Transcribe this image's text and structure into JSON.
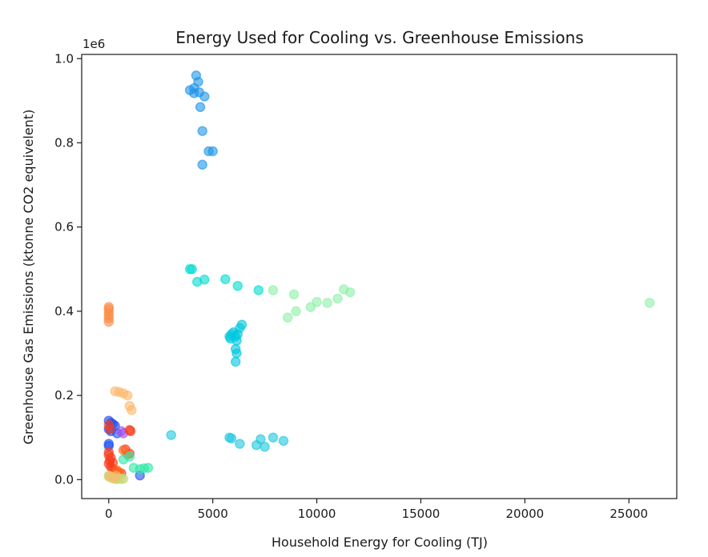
{
  "chart_data": {
    "type": "scatter",
    "title": "Energy Used for Cooling vs. Greenhouse Emissions",
    "xlabel": "Household Energy for Cooling (TJ)",
    "ylabel": "Greenhouse Gas Emissions (ktonne CO2 equivelent)",
    "y_offset_label": "1e6",
    "xlim": [
      -1300,
      27300
    ],
    "ylim": [
      -45000,
      1010000
    ],
    "xticks": [
      0,
      5000,
      10000,
      15000,
      20000,
      25000
    ],
    "xtick_labels": [
      "0",
      "5000",
      "10000",
      "15000",
      "20000",
      "25000"
    ],
    "yticks": [
      0,
      200000,
      400000,
      600000,
      800000,
      1000000
    ],
    "ytick_labels": [
      "0.0",
      "0.2",
      "0.4",
      "0.6",
      "0.8",
      "1.0"
    ],
    "grid": false,
    "legend": "none",
    "marker_alpha": 0.6,
    "groups": [
      {
        "color": "#1f96e8",
        "points": [
          [
            4200,
            960000
          ],
          [
            4300,
            945000
          ],
          [
            4100,
            930000
          ],
          [
            3900,
            925000
          ],
          [
            4100,
            918000
          ],
          [
            4350,
            920000
          ],
          [
            4600,
            910000
          ],
          [
            4400,
            885000
          ],
          [
            4500,
            828000
          ],
          [
            4800,
            780000
          ],
          [
            5000,
            780000
          ],
          [
            4500,
            748000
          ]
        ]
      },
      {
        "color": "#00dcd0",
        "points": [
          [
            3900,
            500000
          ],
          [
            4000,
            500000
          ],
          [
            4250,
            470000
          ],
          [
            4600,
            475000
          ],
          [
            5600,
            476000
          ],
          [
            6200,
            460000
          ],
          [
            7200,
            450000
          ]
        ]
      },
      {
        "color": "#8ef0a8",
        "points": [
          [
            7900,
            450000
          ],
          [
            8900,
            440000
          ],
          [
            8600,
            385000
          ],
          [
            9000,
            400000
          ],
          [
            9700,
            410000
          ],
          [
            10000,
            422000
          ],
          [
            10500,
            420000
          ],
          [
            11000,
            430000
          ],
          [
            11300,
            452000
          ],
          [
            11600,
            445000
          ],
          [
            26000,
            420000
          ]
        ]
      },
      {
        "color": "#00c8e0",
        "points": [
          [
            5800,
            340000
          ],
          [
            5850,
            335000
          ],
          [
            5900,
            345000
          ],
          [
            6000,
            350000
          ],
          [
            6100,
            340000
          ],
          [
            6150,
            330000
          ],
          [
            6200,
            345000
          ],
          [
            6300,
            360000
          ],
          [
            6400,
            368000
          ],
          [
            6100,
            310000
          ],
          [
            6150,
            300000
          ],
          [
            6100,
            280000
          ]
        ]
      },
      {
        "color": "#1ec8e0",
        "points": [
          [
            3000,
            106000
          ],
          [
            5800,
            100000
          ],
          [
            5900,
            98000
          ],
          [
            6300,
            85000
          ],
          [
            7100,
            82000
          ],
          [
            7300,
            96000
          ],
          [
            7500,
            78000
          ],
          [
            7900,
            100000
          ],
          [
            8400,
            92000
          ]
        ]
      },
      {
        "color": "#fb8c46",
        "points": [
          [
            0,
            410000
          ],
          [
            0,
            405000
          ],
          [
            0,
            398000
          ],
          [
            0,
            390000
          ],
          [
            0,
            383000
          ],
          [
            0,
            375000
          ]
        ]
      },
      {
        "color": "#ffb86b",
        "points": [
          [
            300,
            210000
          ],
          [
            500,
            208000
          ],
          [
            700,
            205000
          ],
          [
            900,
            200000
          ],
          [
            1000,
            175000
          ],
          [
            1100,
            165000
          ]
        ]
      },
      {
        "color": "#2050f0",
        "points": [
          [
            0,
            140000
          ],
          [
            100,
            135000
          ],
          [
            200,
            132000
          ],
          [
            300,
            128000
          ],
          [
            0,
            120000
          ],
          [
            100,
            115000
          ],
          [
            400,
            110000
          ],
          [
            0,
            85000
          ],
          [
            0,
            80000
          ],
          [
            1500,
            10000
          ]
        ]
      },
      {
        "color": "#a050f0",
        "points": [
          [
            600,
            115000
          ],
          [
            700,
            110000
          ]
        ]
      },
      {
        "color": "#f83c1c",
        "points": [
          [
            0,
            130000
          ],
          [
            50,
            120000
          ],
          [
            1000,
            118000
          ],
          [
            1050,
            115000
          ],
          [
            0,
            65000
          ],
          [
            0,
            58000
          ],
          [
            100,
            52000
          ],
          [
            50,
            45000
          ],
          [
            200,
            40000
          ],
          [
            0,
            38000
          ],
          [
            100,
            30000
          ],
          [
            200,
            25000
          ],
          [
            300,
            20000
          ],
          [
            400,
            18000
          ],
          [
            600,
            15000
          ],
          [
            800,
            72000
          ],
          [
            1000,
            62000
          ]
        ]
      },
      {
        "color": "#ff6a20",
        "points": [
          [
            700,
            70000
          ],
          [
            900,
            60000
          ],
          [
            400,
            22000
          ],
          [
            500,
            16000
          ]
        ]
      },
      {
        "color": "#30e8a8",
        "points": [
          [
            1200,
            28000
          ],
          [
            1500,
            25000
          ],
          [
            1700,
            27000
          ],
          [
            1900,
            28000
          ],
          [
            1000,
            55000
          ],
          [
            700,
            48000
          ]
        ]
      },
      {
        "color": "#c8d878",
        "points": [
          [
            0,
            10000
          ],
          [
            100,
            5000
          ],
          [
            200,
            3000
          ],
          [
            300,
            2000
          ],
          [
            400,
            1000
          ],
          [
            500,
            3000
          ],
          [
            600,
            1500
          ],
          [
            700,
            2000
          ],
          [
            0,
            7000
          ]
        ]
      },
      {
        "color": "#f2c070",
        "points": [
          [
            50,
            8000
          ],
          [
            150,
            6000
          ],
          [
            250,
            4000
          ],
          [
            350,
            9000
          ]
        ]
      }
    ]
  }
}
